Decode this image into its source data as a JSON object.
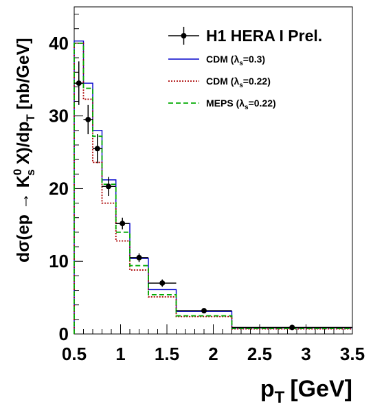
{
  "chart_data": {
    "type": "line",
    "xlabel_main": "p",
    "xlabel_sub": "T",
    "xlabel_unit": "[GeV]",
    "ylabel": {
      "d": "d",
      "sigma": "σ",
      "open": "(ep → K",
      "sup": "0",
      "sub_s": "s",
      "mid": " X)/dp",
      "sub_T": "T",
      "unit": " [nb/GeV]"
    },
    "xlim": [
      0.5,
      3.5
    ],
    "ylim": [
      0,
      45
    ],
    "xticks": [
      {
        "value": 0.5,
        "label": "0.5"
      },
      {
        "value": 1,
        "label": "1"
      },
      {
        "value": 1.5,
        "label": "1.5"
      },
      {
        "value": 2,
        "label": "2"
      },
      {
        "value": 2.5,
        "label": "2.5"
      },
      {
        "value": 3,
        "label": "3"
      },
      {
        "value": 3.5,
        "label": "3.5"
      }
    ],
    "yticks": [
      {
        "value": 0,
        "label": "0"
      },
      {
        "value": 10,
        "label": "10"
      },
      {
        "value": 20,
        "label": "20"
      },
      {
        "value": 30,
        "label": "30"
      },
      {
        "value": 40,
        "label": "40"
      }
    ],
    "bin_edges": [
      0.5,
      0.6,
      0.7,
      0.8,
      0.95,
      1.1,
      1.3,
      1.6,
      2.2,
      3.5
    ],
    "data_points": {
      "name": "H1 HERA I Prel.",
      "color": "#000000",
      "x": [
        0.55,
        0.65,
        0.75,
        0.87,
        1.02,
        1.2,
        1.45,
        1.9,
        2.85
      ],
      "y": [
        34.5,
        29.5,
        25.5,
        20.3,
        15.2,
        10.5,
        7.0,
        3.2,
        0.9
      ],
      "yerr": [
        3.0,
        2.0,
        2.0,
        1.3,
        0.8,
        0.6,
        0.5,
        0.3,
        0.1
      ],
      "xerr": [
        0.05,
        0.05,
        0.05,
        0.075,
        0.075,
        0.1,
        0.15,
        0.3,
        0.65
      ]
    },
    "series": [
      {
        "name_prefix": "CDM (",
        "lambda": "λ",
        "lambda_sub": "s",
        "name_suffix": "=0.3)",
        "color": "#0000cc",
        "style": "solid",
        "values": [
          40.3,
          34.5,
          28.0,
          21.2,
          15.2,
          10.4,
          6.1,
          3.1,
          0.85
        ]
      },
      {
        "name_prefix": "CDM (",
        "lambda": "λ",
        "lambda_sub": "s",
        "name_suffix": "=0.22)",
        "color": "#aa0000",
        "style": "dotted",
        "values": [
          40.0,
          32.3,
          23.6,
          18.0,
          12.8,
          8.8,
          5.1,
          2.4,
          0.7
        ]
      },
      {
        "name_prefix": "MEPS (",
        "lambda": "λ",
        "lambda_sub": "s",
        "name_suffix": "=0.22)",
        "color": "#00aa00",
        "style": "dashed",
        "values": [
          40.0,
          33.8,
          27.2,
          20.6,
          14.0,
          9.4,
          5.4,
          2.5,
          0.75
        ]
      }
    ],
    "legend_position": "top-right",
    "grid": false
  }
}
